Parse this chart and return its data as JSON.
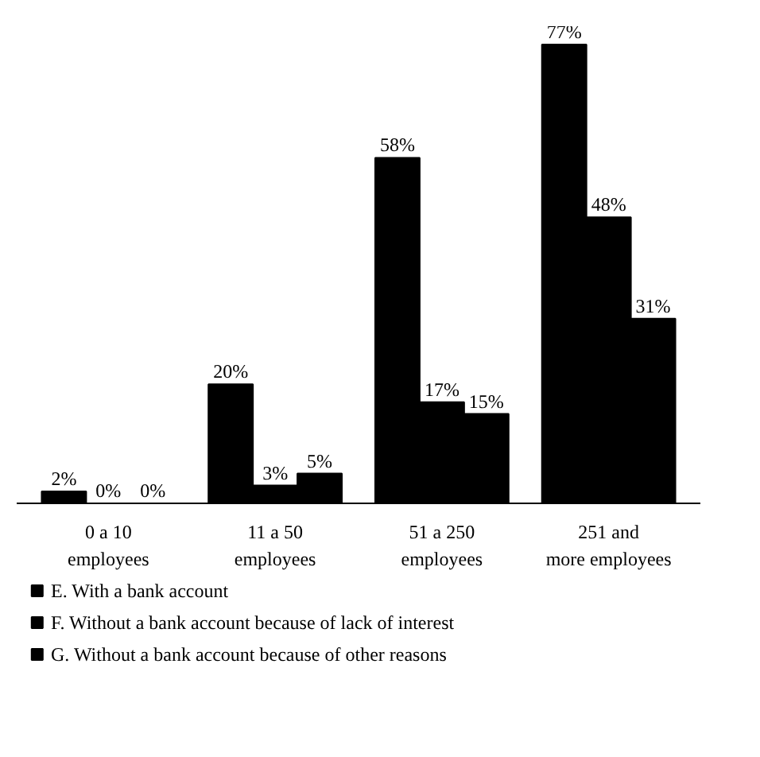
{
  "chart_data": {
    "type": "bar",
    "categories": [
      "0 a 10\nemployees",
      "11 a 50\nemployees",
      "51 a 250\nemployees",
      "251 and\nmore employees"
    ],
    "series": [
      {
        "name": "E. With a bank account",
        "color": "#000000",
        "values": [
          2,
          20,
          58,
          77
        ],
        "value_labels": [
          "2%",
          "20%",
          "58%",
          "77%"
        ]
      },
      {
        "name": "F. Without a bank account because of lack of interest",
        "color": "#000000",
        "values": [
          0,
          3,
          17,
          48
        ],
        "value_labels": [
          "0%",
          "3%",
          "17%",
          "48%"
        ]
      },
      {
        "name": "G. Without a bank account because of other reasons",
        "color": "#000000",
        "values": [
          0,
          5,
          15,
          31
        ],
        "value_labels": [
          "0%",
          "5%",
          "15%",
          "31%"
        ]
      }
    ],
    "legend": "bottom"
  }
}
